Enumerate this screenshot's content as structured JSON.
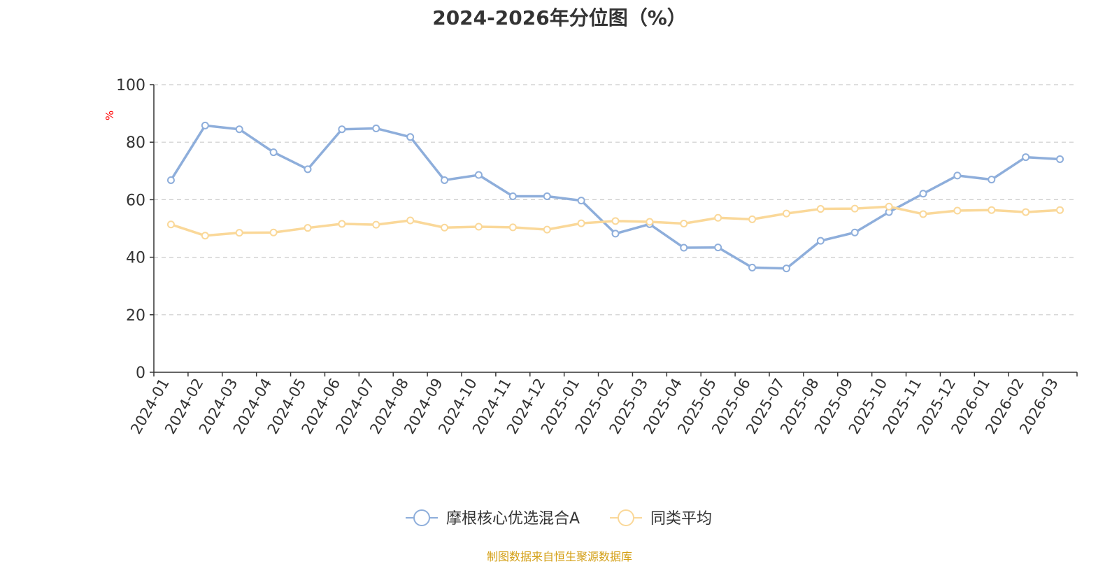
{
  "chart_data": {
    "type": "line",
    "title": "2024-2026年分位图（%）",
    "ylabel": "%",
    "xlabel": "",
    "ylim": [
      0,
      100
    ],
    "yticks": [
      0,
      20,
      40,
      60,
      80,
      100
    ],
    "grid": "horizontal dashed",
    "legend_position": "bottom",
    "categories": [
      "2024-01",
      "2024-02",
      "2024-03",
      "2024-04",
      "2024-05",
      "2024-06",
      "2024-07",
      "2024-08",
      "2024-09",
      "2024-10",
      "2024-11",
      "2024-12",
      "2025-01",
      "2025-02",
      "2025-03",
      "2025-04",
      "2025-05",
      "2025-06",
      "2025-07",
      "2025-08",
      "2025-09",
      "2025-10",
      "2025-11",
      "2025-12",
      "2026-01",
      "2026-02",
      "2026-03"
    ],
    "series": [
      {
        "name": "摩根核心优选混合A",
        "color": "#8eaedb",
        "values": [
          66.8,
          85.8,
          84.5,
          76.5,
          70.6,
          84.5,
          84.8,
          81.8,
          66.8,
          68.6,
          61.2,
          61.2,
          59.7,
          48.2,
          51.5,
          43.3,
          43.4,
          36.4,
          36.1,
          45.7,
          48.6,
          55.7,
          62.1,
          68.4,
          67.0,
          74.8,
          74.1
        ]
      },
      {
        "name": "同类平均",
        "color": "#fad899",
        "values": [
          51.4,
          47.5,
          48.5,
          48.6,
          50.2,
          51.6,
          51.3,
          52.8,
          50.3,
          50.6,
          50.4,
          49.6,
          51.8,
          52.6,
          52.3,
          51.7,
          53.7,
          53.2,
          55.2,
          56.8,
          56.9,
          57.6,
          55.0,
          56.2,
          56.4,
          55.7,
          56.4
        ]
      }
    ]
  },
  "footer": {
    "source": "制图数据来自恒生聚源数据库"
  },
  "colors": {
    "axis": "#333333",
    "grid": "#cccccc",
    "ylabel": "#ff0000",
    "source": "#d4a017"
  }
}
